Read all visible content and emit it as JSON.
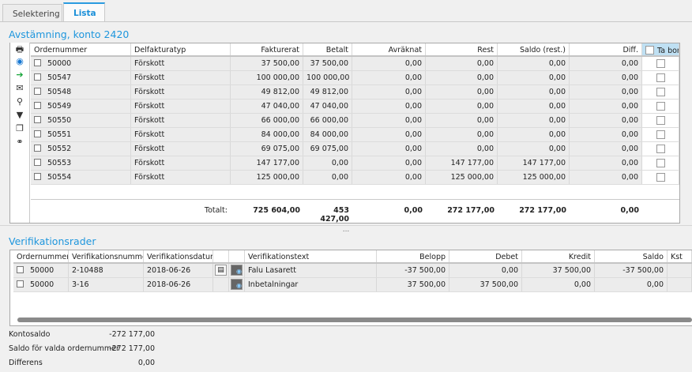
{
  "tabs": [
    {
      "label": "Selektering",
      "active": false
    },
    {
      "label": "Lista",
      "active": true
    }
  ],
  "section1": {
    "title": "Avstämning, konto 2420",
    "toolbar": [
      "printer-icon",
      "eye-icon",
      "export-icon",
      "mail-icon",
      "search-icon",
      "filter-icon",
      "copy-icon",
      "link-icon"
    ],
    "columns": [
      "Ordernummer",
      "Delfakturatyp",
      "Fakturerat",
      "Betalt",
      "Avräknat",
      "Rest",
      "Saldo (rest.)",
      "Diff.",
      "Ta bort"
    ],
    "rows": [
      [
        "50000",
        "Förskott",
        "37 500,00",
        "37 500,00",
        "0,00",
        "0,00",
        "0,00",
        "0,00"
      ],
      [
        "50547",
        "Förskott",
        "100 000,00",
        "100 000,00",
        "0,00",
        "0,00",
        "0,00",
        "0,00"
      ],
      [
        "50548",
        "Förskott",
        "49 812,00",
        "49 812,00",
        "0,00",
        "0,00",
        "0,00",
        "0,00"
      ],
      [
        "50549",
        "Förskott",
        "47 040,00",
        "47 040,00",
        "0,00",
        "0,00",
        "0,00",
        "0,00"
      ],
      [
        "50550",
        "Förskott",
        "66 000,00",
        "66 000,00",
        "0,00",
        "0,00",
        "0,00",
        "0,00"
      ],
      [
        "50551",
        "Förskott",
        "84 000,00",
        "84 000,00",
        "0,00",
        "0,00",
        "0,00",
        "0,00"
      ],
      [
        "50552",
        "Förskott",
        "69 075,00",
        "69 075,00",
        "0,00",
        "0,00",
        "0,00",
        "0,00"
      ],
      [
        "50553",
        "Förskott",
        "147 177,00",
        "0,00",
        "0,00",
        "147 177,00",
        "147 177,00",
        "0,00"
      ],
      [
        "50554",
        "Förskott",
        "125 000,00",
        "0,00",
        "0,00",
        "125 000,00",
        "125 000,00",
        "0,00"
      ]
    ],
    "totals": {
      "label": "Totalt:",
      "values": [
        "725 604,00",
        "453 427,00",
        "0,00",
        "272 177,00",
        "272 177,00",
        "0,00"
      ]
    }
  },
  "splitter": "...",
  "section2": {
    "title": "Verifikationsrader",
    "columns": [
      "Ordernummer",
      "Verifikationsnummer",
      "Verifikationsdatum",
      "",
      "",
      "Verifikationstext",
      "Belopp",
      "Debet",
      "Kredit",
      "Saldo",
      "Kst"
    ],
    "rows": [
      {
        "order": "50000",
        "vernr": "2-10488",
        "date": "2018-06-26",
        "doc_icon": true,
        "text": "Falu Lasarett",
        "belopp": "-37 500,00",
        "debet": "0,00",
        "kredit": "37 500,00",
        "saldo": "-37 500,00",
        "kst": ""
      },
      {
        "order": "50000",
        "vernr": "3-16",
        "date": "2018-06-26",
        "doc_icon": false,
        "text": "Inbetalningar",
        "belopp": "37 500,00",
        "debet": "37 500,00",
        "kredit": "0,00",
        "saldo": "0,00",
        "kst": ""
      }
    ]
  },
  "summary": [
    {
      "label": "Kontosaldo",
      "value": "-272 177,00"
    },
    {
      "label": "Saldo för valda ordernummer",
      "value": "-272 177,00"
    },
    {
      "label": "Differens",
      "value": "0,00"
    }
  ]
}
